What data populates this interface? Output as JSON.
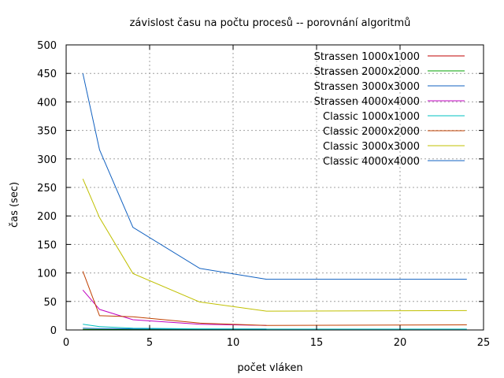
{
  "chart_data": {
    "type": "line",
    "title": "závislost času na počtu procesů -- porovnání algoritmů",
    "xlabel": "počet vláken",
    "ylabel": "čas (sec)",
    "xlim": [
      0,
      25
    ],
    "ylim": [
      0,
      500
    ],
    "xticks": [
      0,
      5,
      10,
      15,
      20,
      25
    ],
    "yticks": [
      0,
      50,
      100,
      150,
      200,
      250,
      300,
      350,
      400,
      450,
      500
    ],
    "grid": true,
    "legend_position": "top-right",
    "series": [
      {
        "name": "Strassen 1000x1000",
        "color": "#c00000",
        "x": [
          1,
          2,
          3
        ],
        "y": [
          0.6,
          0.5,
          0.5
        ]
      },
      {
        "name": "Strassen 2000x2000",
        "color": "#00a000",
        "x": [
          1,
          2,
          4,
          8,
          12
        ],
        "y": [
          1.0,
          0.8,
          0.7,
          0.6,
          0.6
        ]
      },
      {
        "name": "Strassen 3000x3000",
        "color": "#1060c0",
        "x": [
          1,
          2,
          4,
          8,
          12
        ],
        "y": [
          3.0,
          2.5,
          2.0,
          1.8,
          1.7
        ]
      },
      {
        "name": "Strassen 4000x4000",
        "color": "#c000c0",
        "x": [
          1,
          2,
          4,
          8,
          12
        ],
        "y": [
          70,
          36,
          18,
          10,
          8
        ]
      },
      {
        "name": "Classic 1000x1000",
        "color": "#00c0c0",
        "x": [
          1,
          2,
          4,
          8,
          12,
          24
        ],
        "y": [
          10,
          6,
          3,
          2,
          1.5,
          1.5
        ]
      },
      {
        "name": "Classic 2000x2000",
        "color": "#c04000",
        "x": [
          1,
          2,
          4,
          8,
          12,
          24
        ],
        "y": [
          103,
          25,
          23,
          12,
          8,
          9
        ]
      },
      {
        "name": "Classic 3000x3000",
        "color": "#c0c000",
        "x": [
          1,
          2,
          4,
          8,
          12,
          24
        ],
        "y": [
          265,
          197,
          99,
          49,
          33,
          34
        ]
      },
      {
        "name": "Classic 4000x4000",
        "color": "#1060c0",
        "x": [
          1,
          2,
          4,
          8,
          12,
          24
        ],
        "y": [
          450,
          316,
          180,
          108,
          89,
          89
        ]
      }
    ]
  }
}
